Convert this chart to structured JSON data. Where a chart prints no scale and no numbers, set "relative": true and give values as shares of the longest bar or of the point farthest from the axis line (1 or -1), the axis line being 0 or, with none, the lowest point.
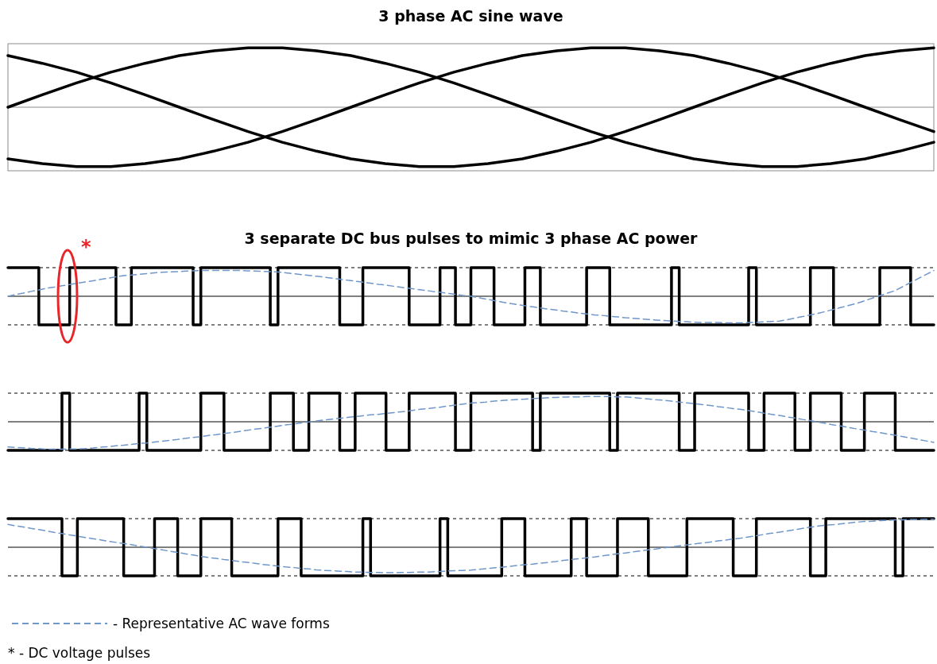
{
  "chart_data": [
    {
      "type": "line",
      "title": "3 phase AC sine wave",
      "relative": true,
      "categories": [
        null,
        null,
        null,
        null,
        null,
        null,
        null,
        null,
        null,
        null,
        null,
        null,
        null,
        null,
        null,
        null,
        null,
        null,
        null,
        null,
        null,
        null,
        null,
        null,
        null,
        null,
        null,
        null
      ],
      "series": [
        {
          "color": "#000000",
          "values": [
            0,
            0.21,
            0.41,
            0.59,
            0.74,
            0.87,
            0.95,
            1,
            1,
            0.95,
            0.87,
            0.74,
            0.59,
            0.41,
            0.21,
            0,
            -0.21,
            -0.41,
            -0.59,
            -0.74,
            -0.87,
            -0.95,
            -1,
            -1,
            -0.95,
            -0.87,
            -0.74,
            -0.59
          ]
        },
        {
          "color": "#000000",
          "values": [
            0.87,
            0.74,
            0.59,
            0.41,
            0.21,
            0,
            -0.21,
            -0.41,
            -0.59,
            -0.74,
            -0.87,
            -0.95,
            -1,
            -1,
            -0.95,
            -0.87,
            -0.74,
            -0.59,
            -0.41,
            -0.21,
            0,
            0.21,
            0.41,
            0.59,
            0.74,
            0.87,
            0.95,
            1
          ]
        },
        {
          "color": "#000000",
          "values": [
            -0.87,
            -0.95,
            -1,
            -1,
            -0.95,
            -0.87,
            -0.74,
            -0.59,
            -0.41,
            -0.21,
            0,
            0.21,
            0.41,
            0.59,
            0.74,
            0.87,
            0.95,
            1,
            1,
            0.95,
            0.87,
            0.74,
            0.59,
            0.41,
            0.21,
            0,
            -0.21,
            -0.41
          ]
        }
      ]
    },
    {
      "type": "step",
      "title": "3 separate DC bus pulses to mimic 3 phase AC power",
      "relative": true,
      "categories": [
        null,
        null,
        null,
        null,
        null,
        null,
        null,
        null,
        null,
        null,
        null,
        null,
        null,
        null,
        null,
        null,
        null,
        null,
        null,
        null,
        null,
        null,
        null,
        null,
        null,
        null,
        null,
        null,
        null,
        null,
        null,
        null,
        null,
        null,
        null,
        null,
        null,
        null,
        null,
        null,
        null,
        null,
        null,
        null,
        null,
        null,
        null,
        null,
        null,
        null,
        null,
        null,
        null,
        null,
        null,
        null,
        null,
        null,
        null,
        null,
        null,
        null,
        null,
        null,
        null,
        null,
        null,
        null,
        null,
        null,
        null,
        null,
        null,
        null,
        null,
        null,
        null,
        null,
        null,
        null,
        null,
        null,
        null,
        null,
        null,
        null,
        null,
        null,
        null,
        null,
        null,
        null,
        null,
        null,
        null,
        null,
        null,
        null,
        null,
        null,
        null,
        null,
        null,
        null,
        null,
        null,
        null,
        null,
        null,
        null,
        null,
        null,
        null,
        null,
        null,
        null,
        null,
        null,
        null,
        null,
        null
      ],
      "ref_lines": [
        {
          "axis": "y",
          "value": 1,
          "line_style": "dashed"
        },
        {
          "axis": "y",
          "value": -1,
          "line_style": "dashed"
        }
      ],
      "annotations": [
        "*"
      ],
      "series": [
        {
          "color": "#000000",
          "values": [
            1,
            1,
            1,
            1,
            -1,
            -1,
            -1,
            -1,
            1,
            1,
            1,
            1,
            1,
            1,
            -1,
            -1,
            1,
            1,
            1,
            1,
            1,
            1,
            1,
            1,
            -1,
            1,
            1,
            1,
            1,
            1,
            1,
            1,
            1,
            1,
            -1,
            1,
            1,
            1,
            1,
            1,
            1,
            1,
            1,
            -1,
            -1,
            -1,
            1,
            1,
            1,
            1,
            1,
            1,
            -1,
            -1,
            -1,
            -1,
            1,
            1,
            -1,
            -1,
            1,
            1,
            1,
            -1,
            -1,
            -1,
            -1,
            1,
            1,
            -1,
            -1,
            -1,
            -1,
            -1,
            -1,
            1,
            1,
            1,
            -1,
            -1,
            -1,
            -1,
            -1,
            -1,
            -1,
            -1,
            1,
            -1,
            -1,
            -1,
            -1,
            -1,
            -1,
            -1,
            -1,
            -1,
            1,
            -1,
            -1,
            -1,
            -1,
            -1,
            -1,
            -1,
            1,
            1,
            1,
            -1,
            -1,
            -1,
            -1,
            -1,
            -1,
            1,
            1,
            1,
            1,
            -1,
            -1,
            -1,
            -1
          ]
        },
        {
          "type": "line",
          "color": "#6f97c9",
          "line_style": "dashed",
          "values": [
            0,
            0.06,
            0.11,
            0.17,
            0.22,
            0.28,
            0.32,
            0.37,
            0.41,
            0.46,
            0.5,
            0.54,
            0.59,
            0.63,
            0.68,
            0.72,
            0.74,
            0.77,
            0.79,
            0.82,
            0.84,
            0.85,
            0.86,
            0.88,
            0.89,
            0.9,
            0.9,
            0.9,
            0.9,
            0.9,
            0.9,
            0.89,
            0.88,
            0.87,
            0.86,
            0.85,
            0.82,
            0.79,
            0.76,
            0.73,
            0.7,
            0.67,
            0.63,
            0.6,
            0.56,
            0.53,
            0.49,
            0.46,
            0.42,
            0.39,
            0.35,
            0.31,
            0.28,
            0.24,
            0.21,
            0.17,
            0.14,
            0.1,
            0.07,
            0.03,
            0,
            -0.05,
            -0.1,
            -0.15,
            -0.2,
            -0.25,
            -0.29,
            -0.33,
            -0.37,
            -0.41,
            -0.45,
            -0.48,
            -0.52,
            -0.55,
            -0.59,
            -0.62,
            -0.65,
            -0.67,
            -0.7,
            -0.72,
            -0.75,
            -0.77,
            -0.79,
            -0.81,
            -0.83,
            -0.85,
            -0.86,
            -0.88,
            -0.89,
            -0.91,
            -0.92,
            -0.92,
            -0.92,
            -0.93,
            -0.93,
            -0.93,
            -0.92,
            -0.91,
            -0.89,
            -0.88,
            -0.87,
            -0.82,
            -0.76,
            -0.71,
            -0.65,
            -0.6,
            -0.53,
            -0.46,
            -0.39,
            -0.32,
            -0.25,
            -0.16,
            -0.07,
            0.02,
            0.11,
            0.2,
            0.34,
            0.48,
            0.62,
            0.76,
            0.9
          ]
        }
      ]
    },
    {
      "type": "step",
      "relative": true,
      "categories": [
        null,
        null,
        null,
        null,
        null,
        null,
        null,
        null,
        null,
        null,
        null,
        null,
        null,
        null,
        null,
        null,
        null,
        null,
        null,
        null,
        null,
        null,
        null,
        null,
        null,
        null,
        null,
        null,
        null,
        null,
        null,
        null,
        null,
        null,
        null,
        null,
        null,
        null,
        null,
        null,
        null,
        null,
        null,
        null,
        null,
        null,
        null,
        null,
        null,
        null,
        null,
        null,
        null,
        null,
        null,
        null,
        null,
        null,
        null,
        null,
        null,
        null,
        null,
        null,
        null,
        null,
        null,
        null,
        null,
        null,
        null,
        null,
        null,
        null,
        null,
        null,
        null,
        null,
        null,
        null,
        null,
        null,
        null,
        null,
        null,
        null,
        null,
        null,
        null,
        null,
        null,
        null,
        null,
        null,
        null,
        null,
        null,
        null,
        null,
        null,
        null,
        null,
        null,
        null,
        null,
        null,
        null,
        null,
        null,
        null,
        null,
        null,
        null,
        null,
        null,
        null,
        null,
        null,
        null,
        null,
        null
      ],
      "ref_lines": [
        {
          "axis": "y",
          "value": 1,
          "line_style": "dashed"
        },
        {
          "axis": "y",
          "value": -1,
          "line_style": "dashed"
        }
      ],
      "series": [
        {
          "color": "#000000",
          "values": [
            -1,
            -1,
            -1,
            -1,
            -1,
            -1,
            -1,
            1,
            -1,
            -1,
            -1,
            -1,
            -1,
            -1,
            -1,
            -1,
            -1,
            1,
            -1,
            -1,
            -1,
            -1,
            -1,
            -1,
            -1,
            1,
            1,
            1,
            -1,
            -1,
            -1,
            -1,
            -1,
            -1,
            1,
            1,
            1,
            -1,
            -1,
            1,
            1,
            1,
            1,
            -1,
            -1,
            1,
            1,
            1,
            1,
            -1,
            -1,
            -1,
            1,
            1,
            1,
            1,
            1,
            1,
            -1,
            -1,
            1,
            1,
            1,
            1,
            1,
            1,
            1,
            1,
            -1,
            1,
            1,
            1,
            1,
            1,
            1,
            1,
            1,
            1,
            -1,
            1,
            1,
            1,
            1,
            1,
            1,
            1,
            1,
            -1,
            -1,
            1,
            1,
            1,
            1,
            1,
            1,
            1,
            -1,
            -1,
            1,
            1,
            1,
            1,
            -1,
            -1,
            1,
            1,
            1,
            1,
            -1,
            -1,
            -1,
            1,
            1,
            1,
            1,
            -1,
            -1,
            -1,
            -1,
            -1,
            -1
          ]
        },
        {
          "type": "line",
          "color": "#6f97c9",
          "line_style": "dashed",
          "values": [
            -0.88,
            -0.9,
            -0.91,
            -0.93,
            -0.94,
            -0.96,
            -0.96,
            -0.96,
            -0.95,
            -0.95,
            -0.94,
            -0.92,
            -0.89,
            -0.87,
            -0.84,
            -0.82,
            -0.79,
            -0.76,
            -0.74,
            -0.71,
            -0.68,
            -0.65,
            -0.62,
            -0.58,
            -0.55,
            -0.52,
            -0.48,
            -0.45,
            -0.41,
            -0.38,
            -0.34,
            -0.3,
            -0.26,
            -0.23,
            -0.19,
            -0.15,
            -0.11,
            -0.08,
            -0.04,
            -0.01,
            0.03,
            0.06,
            0.09,
            0.12,
            0.15,
            0.18,
            0.21,
            0.24,
            0.26,
            0.29,
            0.32,
            0.35,
            0.38,
            0.42,
            0.45,
            0.48,
            0.51,
            0.55,
            0.58,
            0.62,
            0.65,
            0.67,
            0.69,
            0.72,
            0.74,
            0.76,
            0.78,
            0.79,
            0.81,
            0.82,
            0.84,
            0.85,
            0.86,
            0.87,
            0.87,
            0.88,
            0.88,
            0.88,
            0.88,
            0.87,
            0.87,
            0.85,
            0.82,
            0.8,
            0.77,
            0.75,
            0.72,
            0.69,
            0.66,
            0.63,
            0.6,
            0.57,
            0.53,
            0.5,
            0.46,
            0.43,
            0.39,
            0.35,
            0.3,
            0.26,
            0.22,
            0.17,
            0.13,
            0.08,
            0.04,
            -0.01,
            -0.06,
            -0.11,
            -0.15,
            -0.2,
            -0.25,
            -0.29,
            -0.34,
            -0.38,
            -0.43,
            -0.47,
            -0.52,
            -0.57,
            -0.62,
            -0.67,
            -0.72
          ]
        }
      ]
    },
    {
      "type": "step",
      "relative": true,
      "legend": "bottom",
      "categories": [
        null,
        null,
        null,
        null,
        null,
        null,
        null,
        null,
        null,
        null,
        null,
        null,
        null,
        null,
        null,
        null,
        null,
        null,
        null,
        null,
        null,
        null,
        null,
        null,
        null,
        null,
        null,
        null,
        null,
        null,
        null,
        null,
        null,
        null,
        null,
        null,
        null,
        null,
        null,
        null,
        null,
        null,
        null,
        null,
        null,
        null,
        null,
        null,
        null,
        null,
        null,
        null,
        null,
        null,
        null,
        null,
        null,
        null,
        null,
        null,
        null,
        null,
        null,
        null,
        null,
        null,
        null,
        null,
        null,
        null,
        null,
        null,
        null,
        null,
        null,
        null,
        null,
        null,
        null,
        null,
        null,
        null,
        null,
        null,
        null,
        null,
        null,
        null,
        null,
        null,
        null,
        null,
        null,
        null,
        null,
        null,
        null,
        null,
        null,
        null,
        null,
        null,
        null,
        null,
        null,
        null,
        null,
        null,
        null,
        null,
        null,
        null,
        null,
        null,
        null,
        null,
        null,
        null,
        null,
        null,
        null
      ],
      "ref_lines": [
        {
          "axis": "y",
          "value": 1,
          "line_style": "dashed"
        },
        {
          "axis": "y",
          "value": -1,
          "line_style": "dashed"
        }
      ],
      "annotations": [
        "* - DC voltage pulses"
      ],
      "series": [
        {
          "color": "#000000",
          "values": [
            1,
            1,
            1,
            1,
            1,
            1,
            1,
            -1,
            -1,
            1,
            1,
            1,
            1,
            1,
            1,
            -1,
            -1,
            -1,
            -1,
            1,
            1,
            1,
            -1,
            -1,
            -1,
            1,
            1,
            1,
            1,
            -1,
            -1,
            -1,
            -1,
            -1,
            -1,
            1,
            1,
            1,
            -1,
            -1,
            -1,
            -1,
            -1,
            -1,
            -1,
            -1,
            1,
            -1,
            -1,
            -1,
            -1,
            -1,
            -1,
            -1,
            -1,
            -1,
            1,
            -1,
            -1,
            -1,
            -1,
            -1,
            -1,
            -1,
            1,
            1,
            1,
            -1,
            -1,
            -1,
            -1,
            -1,
            -1,
            1,
            1,
            -1,
            -1,
            -1,
            -1,
            1,
            1,
            1,
            1,
            -1,
            -1,
            -1,
            -1,
            -1,
            1,
            1,
            1,
            1,
            1,
            1,
            -1,
            -1,
            -1,
            1,
            1,
            1,
            1,
            1,
            1,
            1,
            -1,
            -1,
            1,
            1,
            1,
            1,
            1,
            1,
            1,
            1,
            1,
            -1,
            1,
            1,
            1,
            1,
            1
          ]
        },
        {
          "type": "line",
          "name": "- Representative AC wave forms",
          "color": "#6f97c9",
          "line_style": "dashed",
          "values": [
            0.8,
            0.75,
            0.71,
            0.66,
            0.62,
            0.57,
            0.52,
            0.48,
            0.43,
            0.39,
            0.34,
            0.3,
            0.26,
            0.21,
            0.17,
            0.13,
            0.09,
            0.04,
            0,
            -0.05,
            -0.09,
            -0.14,
            -0.18,
            -0.23,
            -0.27,
            -0.32,
            -0.36,
            -0.39,
            -0.43,
            -0.46,
            -0.5,
            -0.53,
            -0.56,
            -0.6,
            -0.63,
            -0.66,
            -0.69,
            -0.71,
            -0.74,
            -0.76,
            -0.79,
            -0.81,
            -0.82,
            -0.84,
            -0.85,
            -0.87,
            -0.87,
            -0.88,
            -0.88,
            -0.89,
            -0.89,
            -0.88,
            -0.88,
            -0.87,
            -0.87,
            -0.86,
            -0.85,
            -0.83,
            -0.82,
            -0.81,
            -0.8,
            -0.77,
            -0.75,
            -0.72,
            -0.7,
            -0.67,
            -0.64,
            -0.61,
            -0.59,
            -0.56,
            -0.53,
            -0.5,
            -0.46,
            -0.43,
            -0.4,
            -0.37,
            -0.34,
            -0.3,
            -0.27,
            -0.23,
            -0.2,
            -0.16,
            -0.13,
            -0.09,
            -0.06,
            -0.02,
            0.01,
            0.05,
            0.08,
            0.12,
            0.15,
            0.18,
            0.22,
            0.25,
            0.29,
            0.32,
            0.36,
            0.4,
            0.45,
            0.49,
            0.53,
            0.57,
            0.61,
            0.66,
            0.7,
            0.74,
            0.77,
            0.79,
            0.82,
            0.85,
            0.88,
            0.9,
            0.91,
            0.93,
            0.94,
            0.96,
            0.96,
            0.97,
            0.97,
            0.98,
            0.98
          ]
        }
      ]
    }
  ]
}
